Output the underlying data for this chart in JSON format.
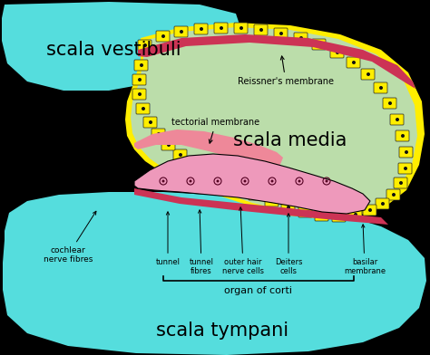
{
  "background_color": "#000000",
  "scala_vestibuli_color": "#55DDDD",
  "scala_tympani_color": "#55DDDD",
  "scala_media_color": "#BBDDAA",
  "reissner_color": "#CC3355",
  "tectorial_color": "#EE8899",
  "organ_corti_color": "#EE99BB",
  "basilar_color": "#CC3355",
  "yellow_cell_color": "#FFEE00",
  "labels": {
    "scala_vestibuli": "scala vestibuli",
    "scala_media": "scala media",
    "scala_tympani": "scala tympani",
    "reissner": "Reissner's membrane",
    "tectorial": "tectorial membrane",
    "tunnel": "tunnel",
    "tunnel_fibres": "tunnel\nfibres",
    "outer_hair": "outer hair\nnerve cells",
    "deiters": "Deiters\ncells",
    "basilar": "basilar\nmembrane",
    "cochlear": "cochlear\nnerve fibres",
    "organ_corti": "organ of corti"
  }
}
